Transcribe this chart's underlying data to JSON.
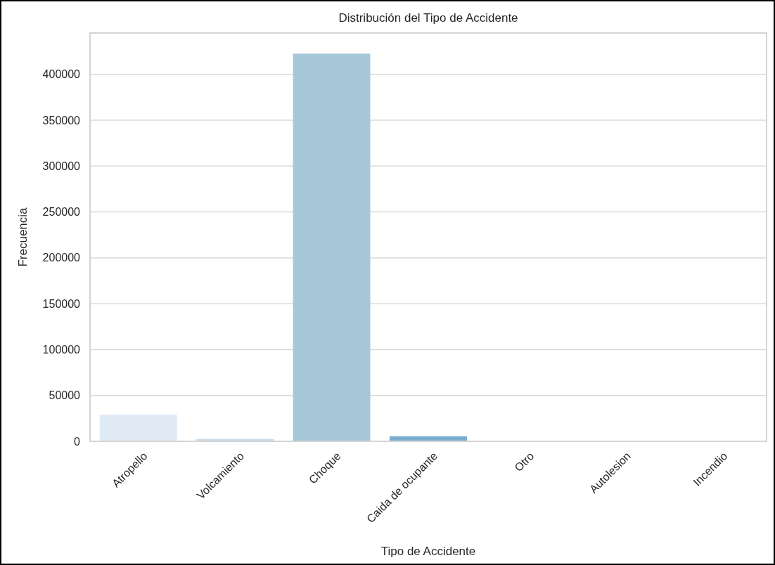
{
  "chart_data": {
    "type": "bar",
    "title": "Distribución del Tipo de Accidente",
    "xlabel": "Tipo de Accidente",
    "ylabel": "Frecuencia",
    "categories": [
      "Atropello",
      "Volcamiento",
      "Choque",
      "Caida de ocupante",
      "Otro",
      "Autolesion",
      "Incendio"
    ],
    "values": [
      29000,
      2500,
      422500,
      5500,
      null,
      null,
      null
    ],
    "colors": [
      "#dfeaf4",
      "#c9dbe8",
      "#a6c8d9",
      "#7badd1",
      null,
      null,
      null
    ],
    "ylim": [
      0,
      445000
    ],
    "yticks": [
      0,
      50000,
      100000,
      150000,
      200000,
      250000,
      300000,
      350000,
      400000
    ],
    "grid": "y"
  }
}
